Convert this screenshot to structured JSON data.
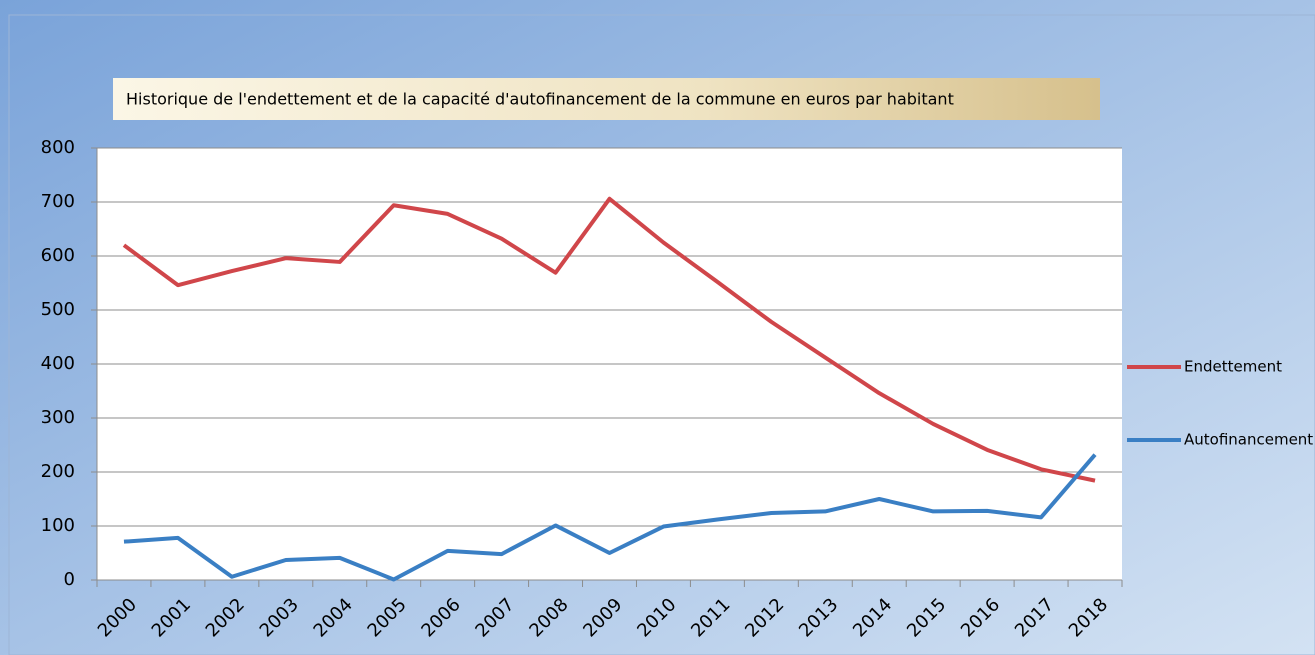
{
  "chart_data": {
    "type": "line",
    "title": "Historique de l'endettement et de la capacité d'autofinancement de la commune en euros par habitant",
    "categories": [
      "2000",
      "2001",
      "2002",
      "2003",
      "2004",
      "2005",
      "2006",
      "2007",
      "2008",
      "2009",
      "2010",
      "2011",
      "2012",
      "2013",
      "2014",
      "2015",
      "2016",
      "2017",
      "2018"
    ],
    "series": [
      {
        "name": "Endettement",
        "color": "#d0464a",
        "values": [
          620,
          546,
          572,
          596,
          589,
          694,
          678,
          632,
          569,
          706,
          625,
          552,
          478,
          412,
          346,
          289,
          241,
          205,
          184
        ]
      },
      {
        "name": "Autofinancement",
        "color": "#3a7fc4",
        "values": [
          71,
          78,
          6,
          37,
          41,
          1,
          54,
          48,
          101,
          50,
          99,
          112,
          124,
          127,
          150,
          127,
          128,
          116,
          232
        ]
      }
    ],
    "ylim": [
      0,
      800
    ],
    "yticks": [
      0,
      100,
      200,
      300,
      400,
      500,
      600,
      700,
      800
    ],
    "grid": true,
    "legend": "right"
  }
}
